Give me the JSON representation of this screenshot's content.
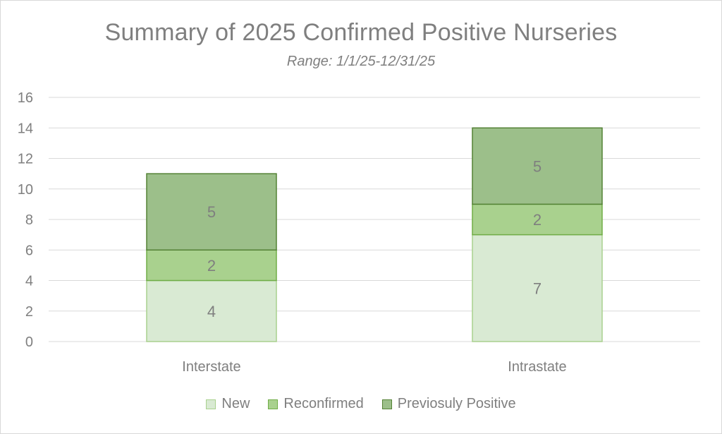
{
  "chart_data": {
    "type": "bar",
    "stacked": true,
    "title": "Summary of 2025 Confirmed Positive Nurseries",
    "subtitle": "Range: 1/1/25-12/31/25",
    "categories": [
      "Interstate",
      "Intrastate"
    ],
    "series": [
      {
        "name": "New",
        "values": [
          4,
          7
        ],
        "color": "#d9ead3",
        "border": "#a9d18e"
      },
      {
        "name": "Reconfirmed",
        "values": [
          2,
          2
        ],
        "color": "#a9d18e",
        "border": "#70ad47"
      },
      {
        "name": "Previosuly Positive",
        "values": [
          5,
          5
        ],
        "color": "#9cbf8a",
        "border": "#548235"
      }
    ],
    "ylim": [
      0,
      16
    ],
    "yticks": [
      "0",
      "2",
      "4",
      "6",
      "8",
      "10",
      "12",
      "14",
      "16"
    ],
    "grid": true,
    "legend_position": "bottom"
  }
}
